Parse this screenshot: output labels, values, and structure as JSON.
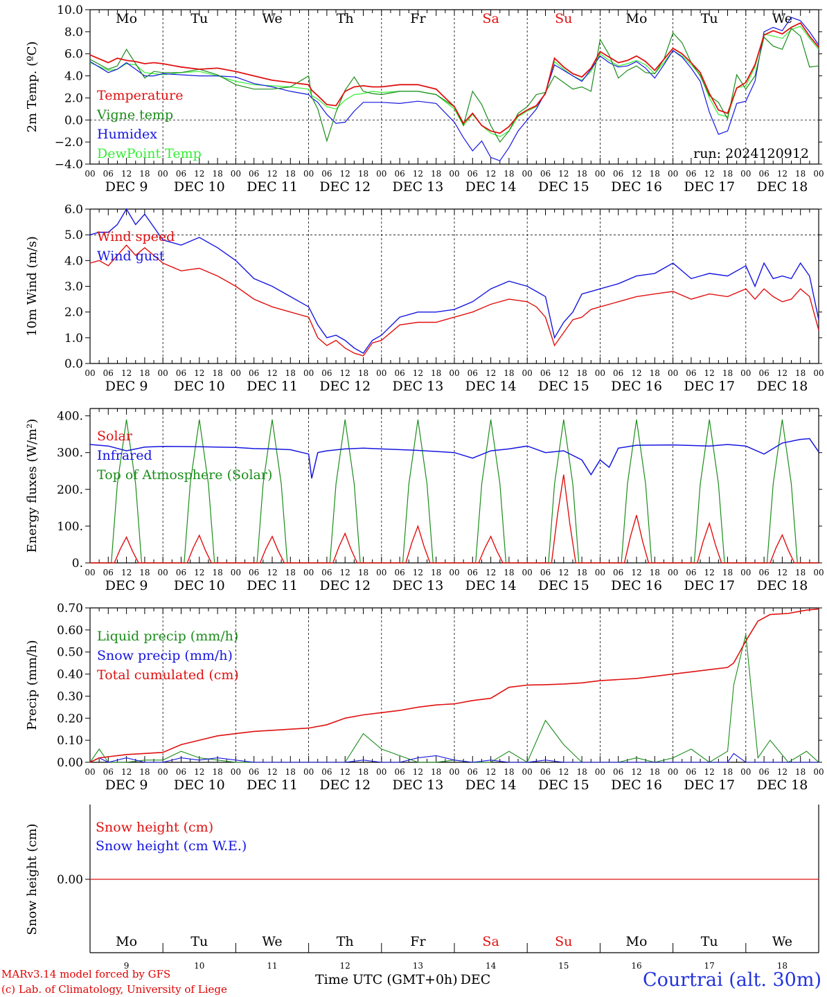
{
  "footer": {
    "model_line": "MARv3.14 model forced by GFS",
    "lab_line": "(c) Lab. of Climatology, University of Liege",
    "time_axis_label": "Time UTC (GMT+0h)",
    "month_label": "DEC",
    "station": "Courtrai (alt. 30m)"
  },
  "day_names": [
    "Mo",
    "Tu",
    "We",
    "Th",
    "Fr",
    "Sa",
    "Su",
    "Mo",
    "Tu",
    "We"
  ],
  "weekend_indices": [
    5,
    6
  ],
  "date_labels": [
    "DEC  9",
    "DEC 10",
    "DEC 11",
    "DEC 12",
    "DEC 13",
    "DEC 14",
    "DEC 15",
    "DEC 16",
    "DEC 17",
    "DEC 18"
  ],
  "bottom_day_numbers": [
    "9",
    "10",
    "11",
    "12",
    "13",
    "14",
    "15",
    "16",
    "17",
    "18"
  ],
  "hour_ticks": [
    "00",
    "06",
    "12",
    "18"
  ],
  "final_hour_tick": "00",
  "colors": {
    "red": "#e01010",
    "green": "#1a8c1a",
    "blue": "#1515e0",
    "lightgreen": "#33ee33",
    "black": "#000000"
  },
  "chart_data": [
    {
      "type": "line",
      "ylabel": "2m Temp. (ºC)",
      "ylim": [
        -4,
        10
      ],
      "yticks": [
        "−4.0",
        "−2.0",
        "0.0",
        "2.0",
        "4.0",
        "6.0",
        "8.0",
        "10.0"
      ],
      "ytick_values": [
        -4,
        -2,
        0,
        2,
        4,
        6,
        8,
        10
      ],
      "zero_line": 0,
      "annotation": "run: 2024120912",
      "x_hours": [
        0,
        6,
        9,
        12,
        15,
        18,
        21,
        24,
        30,
        36,
        42,
        48,
        54,
        60,
        66,
        72,
        73,
        75,
        78,
        81,
        84,
        87,
        90,
        93,
        96,
        102,
        108,
        114,
        120,
        123,
        126,
        129,
        132,
        135,
        138,
        141,
        144,
        147,
        150,
        153,
        156,
        159,
        162,
        165,
        168,
        171,
        174,
        177,
        180,
        183,
        186,
        189,
        192,
        195,
        198,
        201,
        204,
        207,
        210,
        213,
        216,
        219,
        222,
        225,
        228,
        231,
        234,
        237,
        240
      ],
      "series": [
        {
          "name": "Temperature",
          "color": "red",
          "values": [
            5.9,
            5.2,
            5.6,
            5.4,
            5.3,
            5.1,
            5.2,
            5.1,
            4.8,
            4.6,
            4.7,
            4.4,
            4.0,
            3.6,
            3.4,
            3.2,
            2.7,
            2.2,
            1.4,
            1.3,
            2.6,
            3.0,
            3.1,
            3.0,
            3.0,
            3.2,
            3.2,
            2.8,
            1.2,
            -0.3,
            0.6,
            -0.5,
            -1.0,
            -1.2,
            -0.6,
            0.4,
            0.9,
            1.3,
            2.4,
            5.6,
            4.8,
            4.2,
            3.9,
            4.7,
            6.2,
            5.7,
            5.2,
            5.4,
            5.8,
            5.3,
            4.5,
            5.5,
            6.5,
            6.0,
            5.2,
            4.3,
            2.4,
            0.9,
            0.6,
            2.9,
            3.4,
            5.0,
            7.7,
            8.1,
            7.8,
            8.4,
            8.8,
            7.6,
            6.6
          ]
        },
        {
          "name": "Vigne temp",
          "color": "green",
          "values": [
            5.5,
            4.6,
            4.9,
            6.4,
            5.1,
            3.8,
            4.4,
            4.3,
            4.3,
            4.6,
            4.1,
            3.2,
            2.8,
            2.8,
            3.0,
            4.0,
            2.1,
            1.0,
            -1.9,
            0.7,
            2.7,
            3.9,
            2.6,
            2.4,
            2.3,
            2.6,
            2.6,
            2.3,
            1.2,
            -0.5,
            2.6,
            1.4,
            -0.5,
            -2.0,
            -1.0,
            0.6,
            1.2,
            2.3,
            2.5,
            4.0,
            3.4,
            2.8,
            3.0,
            2.6,
            7.3,
            5.9,
            3.8,
            4.5,
            4.9,
            4.3,
            4.2,
            5.5,
            7.9,
            7.0,
            5.2,
            4.0,
            2.2,
            1.6,
            0.1,
            4.1,
            2.8,
            4.0,
            7.5,
            6.7,
            6.4,
            8.3,
            7.6,
            4.8,
            4.9
          ]
        },
        {
          "name": "Humidex",
          "color": "blue",
          "values": [
            5.3,
            4.3,
            4.6,
            5.2,
            4.6,
            4.0,
            4.0,
            4.2,
            4.1,
            4.0,
            4.0,
            3.9,
            3.3,
            3.0,
            2.6,
            2.3,
            2.0,
            1.6,
            0.5,
            -0.3,
            -0.2,
            0.8,
            1.6,
            1.6,
            1.6,
            1.5,
            1.7,
            1.5,
            -0.2,
            -1.6,
            -2.8,
            -1.9,
            -3.4,
            -3.7,
            -2.5,
            -1.0,
            0.0,
            1.0,
            2.5,
            5.0,
            4.5,
            4.0,
            3.5,
            4.6,
            5.8,
            5.2,
            4.8,
            4.9,
            5.3,
            4.7,
            3.8,
            5.0,
            6.3,
            5.7,
            4.7,
            3.5,
            0.7,
            -1.3,
            -1.0,
            1.5,
            1.7,
            3.5,
            8.0,
            8.4,
            8.1,
            9.3,
            9.0,
            8.0,
            6.8
          ]
        },
        {
          "name": "DewPoint Temp",
          "color": "lightgreen",
          "values": [
            5.2,
            4.5,
            4.6,
            5.1,
            5.0,
            4.3,
            4.2,
            4.1,
            4.3,
            4.4,
            4.0,
            3.5,
            3.2,
            3.1,
            3.0,
            2.8,
            2.2,
            1.9,
            1.2,
            1.0,
            1.8,
            2.3,
            2.4,
            2.6,
            2.5,
            2.6,
            2.6,
            2.3,
            1.0,
            -0.5,
            0.5,
            -0.5,
            -1.2,
            -1.5,
            -1.0,
            0.3,
            0.8,
            1.2,
            2.4,
            5.3,
            4.6,
            4.0,
            3.6,
            4.4,
            6.0,
            5.4,
            4.9,
            5.1,
            5.4,
            5.0,
            4.2,
            5.2,
            6.3,
            5.8,
            5.0,
            4.1,
            2.0,
            0.5,
            0.3,
            2.9,
            3.1,
            4.8,
            7.8,
            7.6,
            7.4,
            8.2,
            8.5,
            7.4,
            6.4
          ]
        }
      ]
    },
    {
      "type": "line",
      "ylabel": "10m Wind (m/s)",
      "ylim": [
        0,
        6
      ],
      "yticks": [
        "0.0",
        "1.0",
        "2.0",
        "3.0",
        "4.0",
        "5.0",
        "6.0"
      ],
      "ytick_values": [
        0,
        1,
        2,
        3,
        4,
        5,
        6
      ],
      "ref_line": 5,
      "x_hours": [
        0,
        3,
        6,
        9,
        12,
        15,
        18,
        21,
        24,
        30,
        36,
        42,
        48,
        54,
        60,
        66,
        72,
        75,
        78,
        81,
        84,
        87,
        90,
        93,
        96,
        102,
        108,
        114,
        120,
        126,
        132,
        138,
        144,
        147,
        150,
        153,
        156,
        159,
        162,
        165,
        168,
        174,
        180,
        186,
        192,
        198,
        204,
        210,
        216,
        219,
        222,
        225,
        228,
        231,
        234,
        237,
        240
      ],
      "series": [
        {
          "name": "Wind speed",
          "color": "red",
          "values": [
            3.9,
            4.0,
            3.8,
            4.2,
            4.6,
            4.2,
            4.5,
            4.2,
            3.9,
            3.6,
            3.7,
            3.4,
            3.0,
            2.5,
            2.2,
            2.0,
            1.8,
            1.0,
            0.7,
            0.9,
            0.6,
            0.4,
            0.3,
            0.8,
            0.9,
            1.5,
            1.6,
            1.6,
            1.8,
            2.0,
            2.3,
            2.5,
            2.4,
            2.2,
            1.8,
            0.7,
            1.2,
            1.7,
            1.8,
            2.1,
            2.2,
            2.4,
            2.6,
            2.7,
            2.8,
            2.5,
            2.7,
            2.6,
            2.9,
            2.5,
            2.9,
            2.6,
            2.4,
            2.5,
            2.9,
            2.6,
            1.3
          ]
        },
        {
          "name": "Wind gust",
          "color": "blue",
          "values": [
            5.0,
            5.1,
            5.1,
            5.4,
            6.0,
            5.4,
            5.8,
            5.3,
            4.8,
            4.6,
            4.9,
            4.5,
            4.0,
            3.3,
            3.0,
            2.6,
            2.2,
            1.5,
            1.0,
            1.1,
            0.9,
            0.6,
            0.4,
            0.9,
            1.1,
            1.8,
            2.0,
            2.0,
            2.1,
            2.4,
            2.9,
            3.2,
            3.0,
            2.8,
            2.6,
            1.0,
            1.6,
            2.0,
            2.7,
            2.8,
            2.9,
            3.1,
            3.4,
            3.5,
            3.9,
            3.3,
            3.5,
            3.4,
            3.8,
            3.0,
            3.9,
            3.3,
            3.4,
            3.3,
            3.9,
            3.4,
            1.7
          ]
        }
      ]
    },
    {
      "type": "line",
      "ylabel": "Energy fluxes (W/m²)",
      "ylim": [
        0,
        420
      ],
      "yticks": [
        "0.",
        "100.",
        "200.",
        "300.",
        "400."
      ],
      "ytick_values": [
        0,
        100,
        200,
        300,
        400
      ],
      "solar_peaks": [
        70,
        75,
        72,
        80,
        100,
        72,
        240,
        130,
        108,
        76
      ],
      "toa_peak": 390,
      "ir_hours": [
        0,
        6,
        12,
        18,
        24,
        36,
        48,
        54,
        60,
        66,
        72,
        73,
        75,
        78,
        84,
        90,
        96,
        108,
        120,
        126,
        132,
        138,
        144,
        150,
        156,
        162,
        165,
        168,
        171,
        174,
        180,
        192,
        204,
        210,
        216,
        222,
        228,
        234,
        237,
        240
      ],
      "series": [
        {
          "name": "Solar",
          "color": "red"
        },
        {
          "name": "Infrared",
          "color": "blue",
          "values": [
            322,
            318,
            305,
            315,
            317,
            316,
            314,
            311,
            310,
            308,
            296,
            230,
            300,
            305,
            310,
            312,
            310,
            306,
            300,
            285,
            305,
            310,
            318,
            300,
            305,
            280,
            240,
            280,
            260,
            312,
            320,
            321,
            318,
            322,
            318,
            296,
            326,
            336,
            338,
            302
          ]
        },
        {
          "name": "Top of Atmosphere (Solar)",
          "color": "green"
        }
      ]
    },
    {
      "type": "line",
      "ylabel": "Precip (mm/h)",
      "ylim": [
        0,
        0.7
      ],
      "yticks": [
        "0.00",
        "0.10",
        "0.20",
        "0.30",
        "0.40",
        "0.50",
        "0.60",
        "0.70"
      ],
      "ytick_values": [
        0,
        0.1,
        0.2,
        0.3,
        0.4,
        0.5,
        0.6,
        0.7
      ],
      "x_hours": [
        0,
        3,
        6,
        12,
        18,
        24,
        30,
        36,
        42,
        48,
        54,
        60,
        66,
        72,
        78,
        84,
        90,
        96,
        102,
        108,
        114,
        120,
        126,
        132,
        138,
        144,
        150,
        156,
        162,
        168,
        174,
        180,
        186,
        192,
        198,
        204,
        210,
        212,
        216,
        220,
        224,
        230,
        236,
        240
      ],
      "series": [
        {
          "name": "Liquid precip (mm/h)",
          "color": "green",
          "values": [
            0,
            0.06,
            0,
            0,
            0.01,
            0.01,
            0.05,
            0.02,
            0.01,
            0,
            0,
            0,
            0,
            0,
            0,
            0,
            0.13,
            0.06,
            0.03,
            0,
            0,
            0.01,
            0,
            0,
            0.05,
            0,
            0.19,
            0.08,
            0,
            0,
            0,
            0.02,
            0,
            0.02,
            0.06,
            0,
            0.05,
            0.35,
            0.58,
            0.02,
            0.1,
            0,
            0.05,
            0
          ]
        },
        {
          "name": "Snow precip (mm/h)",
          "color": "blue",
          "values": [
            0,
            0.02,
            0,
            0.02,
            0,
            0,
            0.02,
            0.01,
            0.02,
            0.01,
            0,
            0,
            0,
            0,
            0,
            0,
            0.01,
            0,
            0,
            0.02,
            0.03,
            0.01,
            0,
            0.01,
            0,
            0,
            0.01,
            0,
            0,
            0,
            0,
            0,
            0,
            0,
            0,
            0,
            0,
            0.04,
            0,
            0,
            0,
            0,
            0,
            0
          ]
        },
        {
          "name": "Total cumulated (cm)",
          "color": "red",
          "values": [
            0,
            0.02,
            0.025,
            0.035,
            0.04,
            0.045,
            0.08,
            0.1,
            0.12,
            0.13,
            0.14,
            0.145,
            0.15,
            0.155,
            0.17,
            0.2,
            0.215,
            0.225,
            0.235,
            0.25,
            0.26,
            0.265,
            0.28,
            0.29,
            0.34,
            0.35,
            0.352,
            0.355,
            0.36,
            0.37,
            0.375,
            0.38,
            0.39,
            0.4,
            0.41,
            0.42,
            0.43,
            0.45,
            0.55,
            0.64,
            0.67,
            0.675,
            0.69,
            0.695
          ]
        }
      ]
    },
    {
      "type": "line",
      "ylabel": "Snow height (cm)",
      "yticks": [
        "0.00"
      ],
      "ytick_values": [
        0
      ],
      "series": [
        {
          "name": "Snow height (cm)",
          "color": "red",
          "values": [
            0,
            0
          ]
        },
        {
          "name": "Snow height (cm W.E.)",
          "color": "blue"
        }
      ]
    }
  ]
}
